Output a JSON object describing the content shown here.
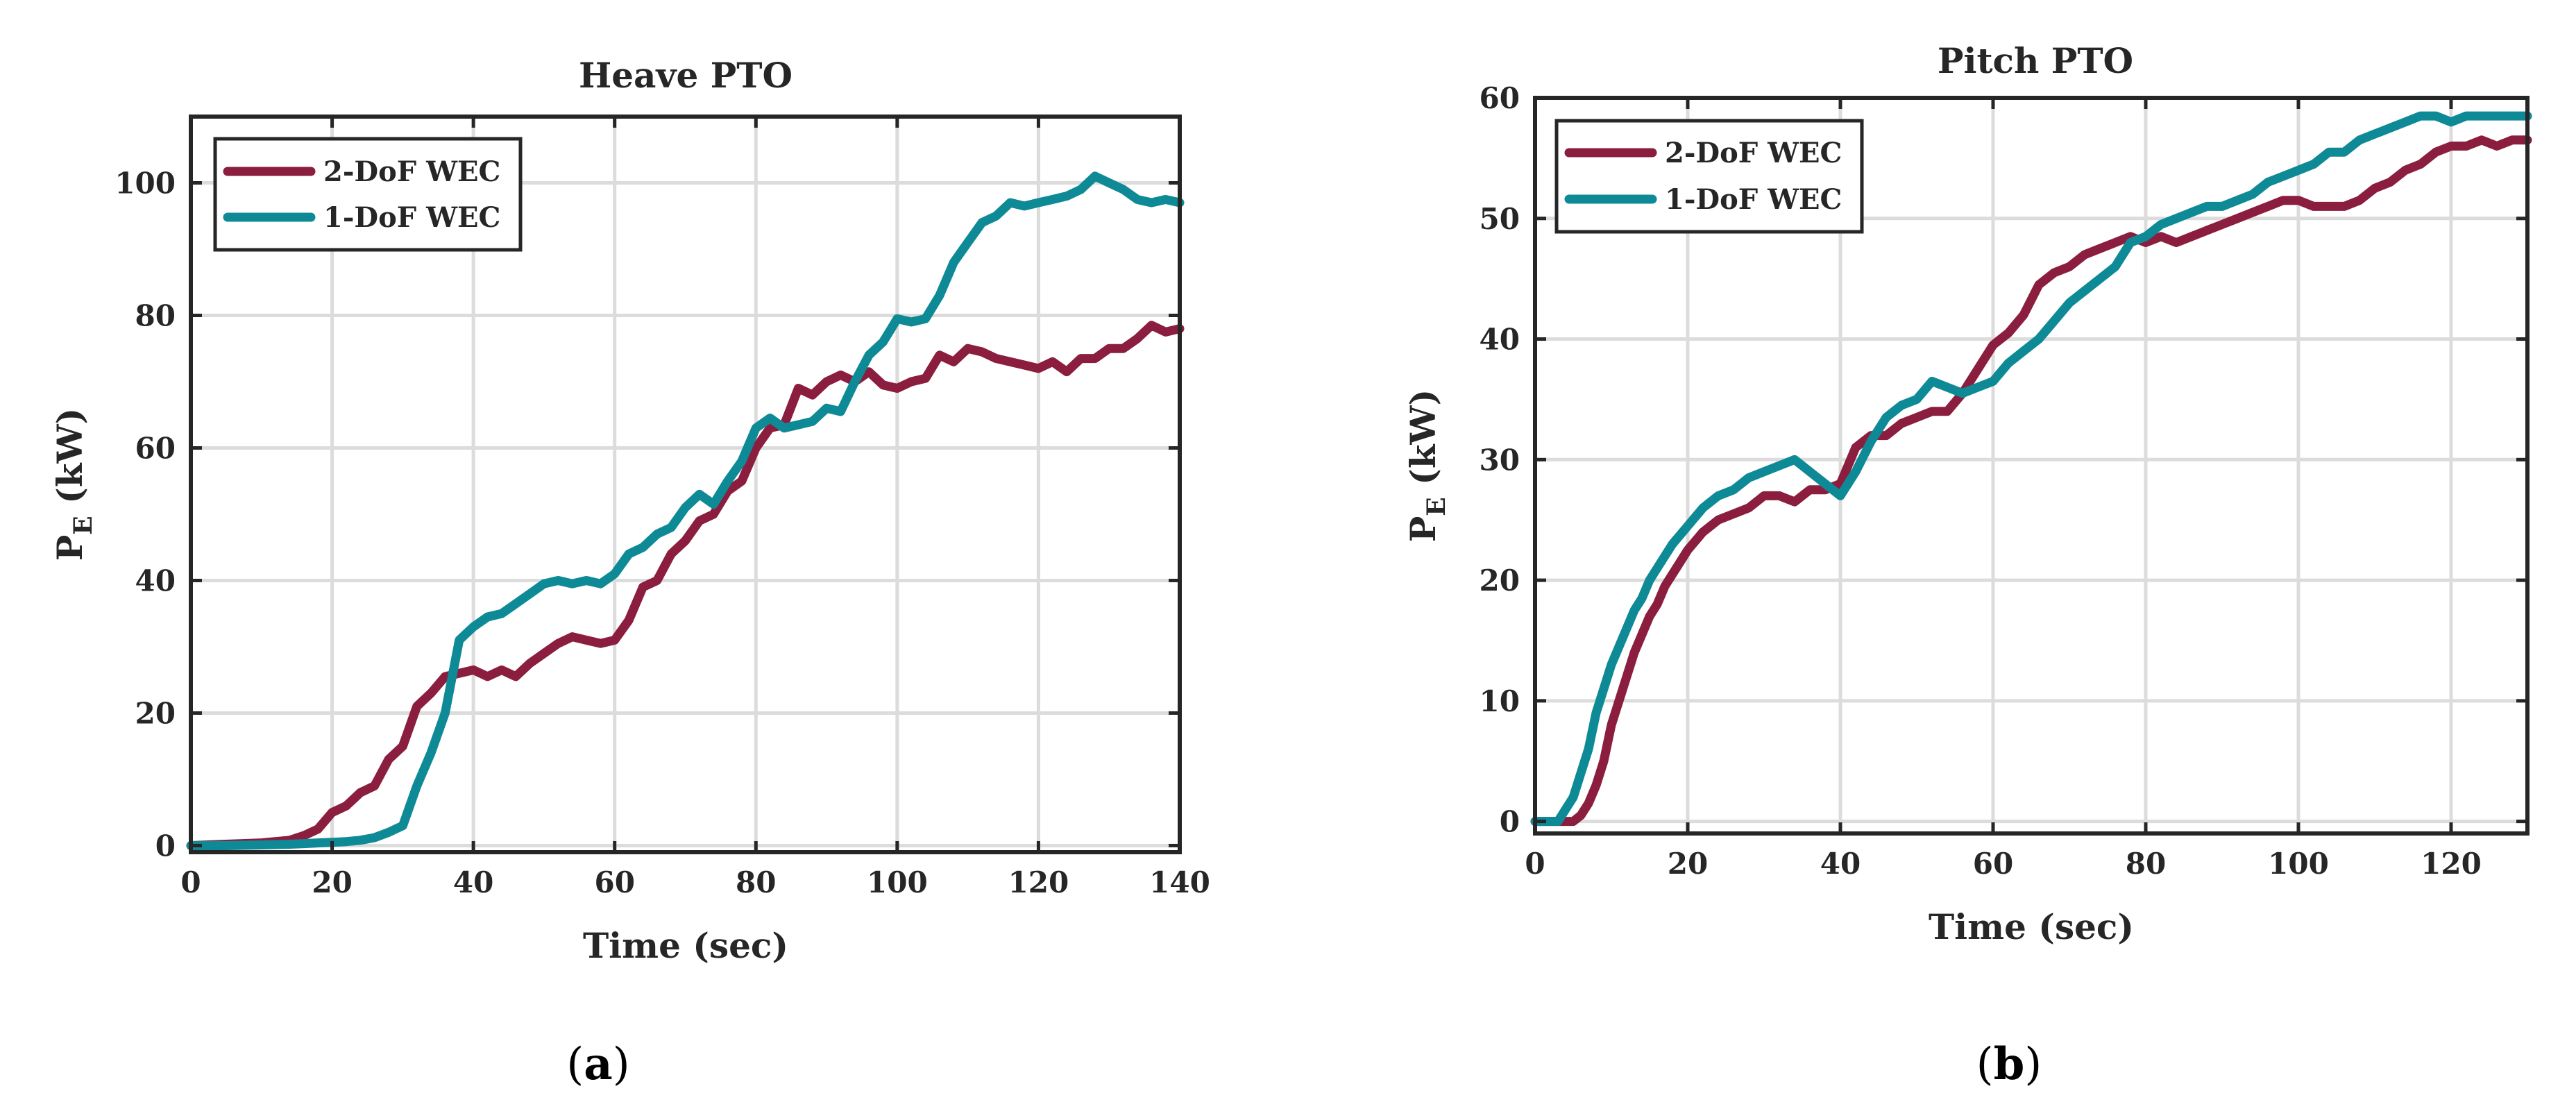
{
  "chart_data": [
    {
      "type": "line",
      "panel_label": "a",
      "title": "Heave PTO",
      "xlabel": "Time (sec)",
      "ylabel_main": "P",
      "ylabel_sub": "E",
      "ylabel_unit": " (kW)",
      "xlim": [
        0,
        140
      ],
      "ylim": [
        -1,
        110
      ],
      "xticks": [
        0,
        20,
        40,
        60,
        80,
        100,
        120,
        140
      ],
      "yticks": [
        0,
        20,
        40,
        60,
        80,
        100
      ],
      "grid": true,
      "legend_position": "top-left",
      "series": [
        {
          "name": "2-DoF WEC",
          "color": "#8b1e3f",
          "x": [
            0,
            5,
            10,
            14,
            16,
            18,
            20,
            22,
            24,
            26,
            28,
            30,
            32,
            34,
            36,
            38,
            40,
            42,
            44,
            46,
            48,
            50,
            52,
            54,
            56,
            58,
            60,
            62,
            64,
            66,
            68,
            70,
            72,
            74,
            76,
            78,
            80,
            82,
            84,
            86,
            88,
            90,
            92,
            94,
            96,
            98,
            100,
            102,
            104,
            106,
            108,
            110,
            112,
            114,
            116,
            118,
            120,
            122,
            124,
            126,
            128,
            130,
            132,
            134,
            136,
            138,
            140
          ],
          "y": [
            0,
            0.2,
            0.4,
            0.8,
            1.5,
            2.5,
            5,
            6,
            8,
            9,
            13,
            15,
            21,
            23,
            25.5,
            26,
            26.5,
            25.5,
            26.5,
            25.5,
            27.5,
            29,
            30.5,
            31.5,
            31,
            30.5,
            31,
            34,
            39,
            40,
            44,
            46,
            49,
            50,
            53.5,
            55,
            60,
            63,
            63.5,
            69,
            68,
            70,
            71,
            70,
            71.5,
            69.5,
            69,
            70,
            70.5,
            74,
            73,
            75,
            74.5,
            73.5,
            73,
            72.5,
            72,
            73,
            71.5,
            73.5,
            73.5,
            75,
            75,
            76.5,
            78.5,
            77.5,
            78
          ]
        },
        {
          "name": "1-DoF WEC",
          "color": "#0e8a96",
          "x": [
            0,
            5,
            10,
            14,
            16,
            18,
            20,
            22,
            24,
            26,
            28,
            30,
            32,
            34,
            36,
            38,
            40,
            42,
            44,
            46,
            48,
            50,
            52,
            54,
            56,
            58,
            60,
            62,
            64,
            66,
            68,
            70,
            72,
            74,
            76,
            78,
            80,
            82,
            84,
            86,
            88,
            90,
            92,
            94,
            96,
            98,
            100,
            102,
            104,
            106,
            108,
            110,
            112,
            114,
            116,
            118,
            120,
            122,
            124,
            126,
            128,
            130,
            132,
            134,
            136,
            138,
            140
          ],
          "y": [
            0,
            0,
            0.1,
            0.2,
            0.3,
            0.4,
            0.5,
            0.6,
            0.8,
            1.2,
            2,
            3,
            9,
            14,
            20,
            31,
            33,
            34.5,
            35,
            36.5,
            38,
            39.5,
            40,
            39.5,
            40,
            39.5,
            41,
            44,
            45,
            47,
            48,
            51,
            53,
            51.5,
            55,
            58,
            63,
            64.5,
            63,
            63.5,
            64,
            66,
            65.5,
            70,
            74,
            76,
            79.5,
            79,
            79.5,
            83,
            88,
            91,
            94,
            95,
            97,
            96.5,
            97,
            97.5,
            98,
            99,
            101,
            100,
            99,
            97.5,
            97,
            97.5,
            97
          ]
        }
      ]
    },
    {
      "type": "line",
      "panel_label": "b",
      "title": "Pitch PTO",
      "xlabel": "Time (sec)",
      "ylabel_main": "P",
      "ylabel_sub": "E",
      "ylabel_unit": " (kW)",
      "xlim": [
        0,
        130
      ],
      "ylim": [
        -1,
        60
      ],
      "xticks": [
        0,
        20,
        40,
        60,
        80,
        100,
        120
      ],
      "yticks": [
        0,
        10,
        20,
        30,
        40,
        50,
        60
      ],
      "grid": true,
      "legend_position": "top-left",
      "series": [
        {
          "name": "2-DoF WEC",
          "color": "#8b1e3f",
          "x": [
            0,
            3,
            5,
            6,
            7,
            8,
            9,
            10,
            11,
            12,
            13,
            14,
            15,
            16,
            17,
            18,
            19,
            20,
            22,
            24,
            26,
            28,
            30,
            32,
            34,
            36,
            38,
            40,
            42,
            44,
            46,
            48,
            50,
            52,
            54,
            56,
            58,
            60,
            62,
            64,
            66,
            68,
            70,
            72,
            74,
            76,
            78,
            80,
            82,
            84,
            86,
            88,
            90,
            92,
            94,
            96,
            98,
            100,
            102,
            104,
            106,
            108,
            110,
            112,
            114,
            116,
            118,
            120,
            122,
            124,
            126,
            128,
            130
          ],
          "y": [
            0,
            0,
            0,
            0.5,
            1.5,
            3,
            5,
            8,
            10,
            12,
            14,
            15.5,
            17,
            18,
            19.5,
            20.5,
            21.5,
            22.5,
            24,
            25,
            25.5,
            26,
            27,
            27,
            26.5,
            27.5,
            27.5,
            28,
            31,
            32,
            32,
            33,
            33.5,
            34,
            34,
            35.5,
            37.5,
            39.5,
            40.5,
            42,
            44.5,
            45.5,
            46,
            47,
            47.5,
            48,
            48.5,
            48,
            48.5,
            48,
            48.5,
            49,
            49.5,
            50,
            50.5,
            51,
            51.5,
            51.5,
            51,
            51,
            51,
            51.5,
            52.5,
            53,
            54,
            54.5,
            55.5,
            56,
            56,
            56.5,
            56,
            56.5,
            56.5
          ]
        },
        {
          "name": "1-DoF WEC",
          "color": "#0e8a96",
          "x": [
            0,
            2,
            3,
            4,
            5,
            6,
            7,
            8,
            9,
            10,
            11,
            12,
            13,
            14,
            15,
            16,
            17,
            18,
            20,
            22,
            24,
            26,
            28,
            30,
            32,
            34,
            36,
            38,
            40,
            42,
            44,
            46,
            48,
            50,
            52,
            54,
            56,
            58,
            60,
            62,
            64,
            66,
            68,
            70,
            72,
            74,
            76,
            78,
            80,
            82,
            84,
            86,
            88,
            90,
            92,
            94,
            96,
            98,
            100,
            102,
            104,
            106,
            108,
            110,
            112,
            114,
            116,
            118,
            120,
            122,
            124,
            126,
            128,
            130
          ],
          "y": [
            0,
            0,
            0,
            1,
            2,
            4,
            6,
            9,
            11,
            13,
            14.5,
            16,
            17.5,
            18.5,
            20,
            21,
            22,
            23,
            24.5,
            26,
            27,
            27.5,
            28.5,
            29,
            29.5,
            30,
            29,
            28,
            27,
            29,
            31.5,
            33.5,
            34.5,
            35,
            36.5,
            36,
            35.5,
            36,
            36.5,
            38,
            39,
            40,
            41.5,
            43,
            44,
            45,
            46,
            48,
            48.5,
            49.5,
            50,
            50.5,
            51,
            51,
            51.5,
            52,
            53,
            53.5,
            54,
            54.5,
            55.5,
            55.5,
            56.5,
            57,
            57.5,
            58,
            58.5,
            58.5,
            58,
            58.5,
            58.5,
            58.5,
            58.5,
            58.5
          ]
        }
      ]
    }
  ]
}
